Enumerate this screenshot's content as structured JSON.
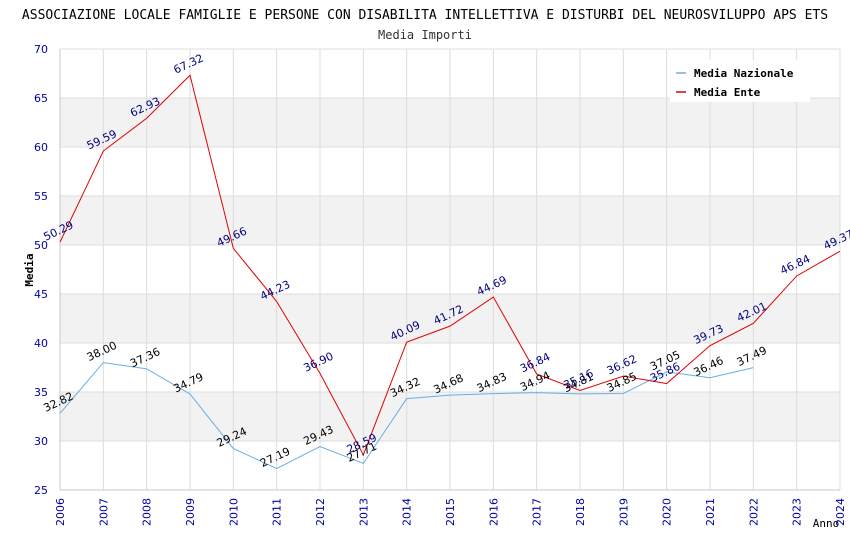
{
  "chart_data": {
    "type": "line",
    "title": "ASSOCIAZIONE LOCALE FAMIGLIE E PERSONE CON DISABILITA INTELLETTIVA E DISTURBI DEL NEUROSVILUPPO APS ETS",
    "subtitle": "Media Importi",
    "xlabel": "Anno",
    "ylabel": "Media",
    "ylim": [
      25,
      70
    ],
    "yticks": [
      25,
      30,
      35,
      40,
      45,
      50,
      55,
      60,
      65,
      70
    ],
    "categories": [
      "2006",
      "2007",
      "2008",
      "2009",
      "2010",
      "2011",
      "2012",
      "2013",
      "2014",
      "2015",
      "2016",
      "2017",
      "2018",
      "2019",
      "2020",
      "2021",
      "2022",
      "2023",
      "2024"
    ],
    "series": [
      {
        "name": "Media Nazionale",
        "color": "#6aaee6",
        "label_color": "#000000",
        "values": [
          32.82,
          38.0,
          37.36,
          34.79,
          29.24,
          27.19,
          29.43,
          27.71,
          34.32,
          34.68,
          34.83,
          34.94,
          34.81,
          34.85,
          37.05,
          36.46,
          37.49,
          null,
          null
        ],
        "labels": [
          "32.82",
          "38.00",
          "37.36",
          "34.79",
          "29.24",
          "27.19",
          "29.43",
          "27.71",
          "34.32",
          "34.68",
          "34.83",
          "34.94",
          "34.81",
          "34.85",
          "37.05",
          "36.46",
          "37.49",
          null,
          null
        ]
      },
      {
        "name": "Media Ente",
        "color": "#e00000",
        "label_color": "#000080",
        "values": [
          50.29,
          59.59,
          62.93,
          67.32,
          49.66,
          44.23,
          36.9,
          28.59,
          40.09,
          41.72,
          44.69,
          36.84,
          35.16,
          36.62,
          35.86,
          39.73,
          42.01,
          46.84,
          49.37
        ],
        "labels": [
          "50.29",
          "59.59",
          "62.93",
          "67.32",
          "49.66",
          "44.23",
          "36.90",
          "28.59",
          "40.09",
          "41.72",
          "44.69",
          "36.84",
          "35.16",
          "36.62",
          "35.86",
          "39.73",
          "42.01",
          "46.84",
          "49.37"
        ]
      }
    ],
    "legend": {
      "position": "top-right"
    },
    "grid": true,
    "band_color": "#f2f2f2",
    "axis_label_color": "#0000a0"
  }
}
